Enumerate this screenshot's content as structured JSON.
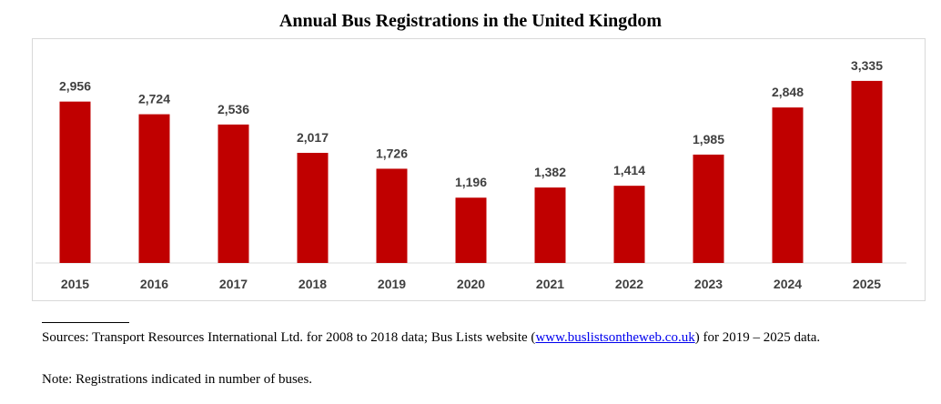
{
  "chart_data": {
    "type": "bar",
    "title": "Annual Bus Registrations in the United Kingdom",
    "categories": [
      "2015",
      "2016",
      "2017",
      "2018",
      "2019",
      "2020",
      "2021",
      "2022",
      "2023",
      "2024",
      "2025"
    ],
    "values": [
      2956,
      2724,
      2536,
      2017,
      1726,
      1196,
      1382,
      1414,
      1985,
      2848,
      3335
    ],
    "value_labels": [
      "2,956",
      "2,724",
      "2,536",
      "2,017",
      "1,726",
      "1,196",
      "1,382",
      "1,414",
      "1,985",
      "2,848",
      "3,335"
    ],
    "xlabel": "",
    "ylabel": "",
    "ylim": [
      0,
      3700
    ],
    "grid": false,
    "legend": "none",
    "bar_color": "#c00000",
    "axis_color": "#d9d9d9",
    "label_color": "#404040"
  },
  "footnote": {
    "sources_prefix": "Sources: Transport Resources International Ltd. for 2008 to 2018 data; Bus Lists website (",
    "sources_link": "www.buslistsontheweb.co.uk",
    "sources_suffix": ") for 2019 – 2025 data.",
    "note": "Note: Registrations indicated in number of buses."
  }
}
